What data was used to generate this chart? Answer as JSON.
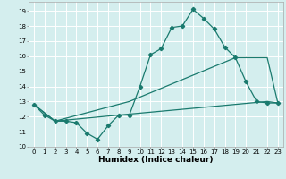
{
  "title": "",
  "xlabel": "Humidex (Indice chaleur)",
  "ylabel": "",
  "bg_color": "#d4eeee",
  "line_color": "#1a7a6e",
  "grid_color": "#ffffff",
  "xlim": [
    -0.5,
    23.5
  ],
  "ylim": [
    10,
    19.6
  ],
  "yticks": [
    10,
    11,
    12,
    13,
    14,
    15,
    16,
    17,
    18,
    19
  ],
  "xticks": [
    0,
    1,
    2,
    3,
    4,
    5,
    6,
    7,
    8,
    9,
    10,
    11,
    12,
    13,
    14,
    15,
    16,
    17,
    18,
    19,
    20,
    21,
    22,
    23
  ],
  "line1_x": [
    0,
    1,
    2,
    3,
    4,
    5,
    6,
    7,
    8,
    9,
    10,
    11,
    12,
    13,
    14,
    15,
    16,
    17,
    18,
    19,
    20,
    21,
    22,
    23
  ],
  "line1_y": [
    12.8,
    12.1,
    11.7,
    11.7,
    11.6,
    10.9,
    10.5,
    11.4,
    12.1,
    12.1,
    14.0,
    16.1,
    16.5,
    17.9,
    18.0,
    19.1,
    18.5,
    17.8,
    16.6,
    15.9,
    14.3,
    13.0,
    12.9,
    12.9
  ],
  "line2_x": [
    0,
    2,
    8,
    22,
    23
  ],
  "line2_y": [
    12.8,
    11.7,
    12.1,
    13.0,
    12.9
  ],
  "line3_x": [
    0,
    2,
    9,
    19,
    22,
    23
  ],
  "line3_y": [
    12.8,
    11.7,
    13.0,
    15.9,
    15.9,
    12.9
  ],
  "tick_fontsize": 5.0,
  "xlabel_fontsize": 6.5
}
